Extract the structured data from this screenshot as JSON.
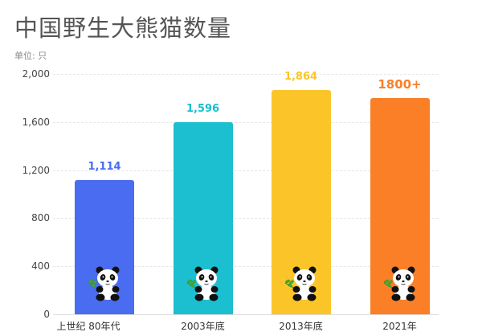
{
  "title": "中国野生大熊猫数量",
  "unit_label": "单位: 只",
  "chart_data": {
    "type": "bar",
    "title": "中国野生大熊猫数量",
    "subtitle": "单位: 只",
    "categories": [
      "上世纪 80年代",
      "2003年底",
      "2013年底",
      "2021年"
    ],
    "values": [
      1114,
      1596,
      1864,
      1800
    ],
    "value_labels": [
      "1,114",
      "1,596",
      "1,864",
      "1800+"
    ],
    "colors": [
      "#4a6cf0",
      "#1bbfcf",
      "#fbc52a",
      "#fb7f27"
    ],
    "xlabel": "",
    "ylabel": "单位: 只",
    "ylim": [
      0,
      2000
    ],
    "yticks": [
      "0",
      "400",
      "800",
      "1,200",
      "1,600",
      "2,000"
    ],
    "grid": true,
    "legend": "none",
    "decoration": "panda-icon at bottom of each bar"
  }
}
